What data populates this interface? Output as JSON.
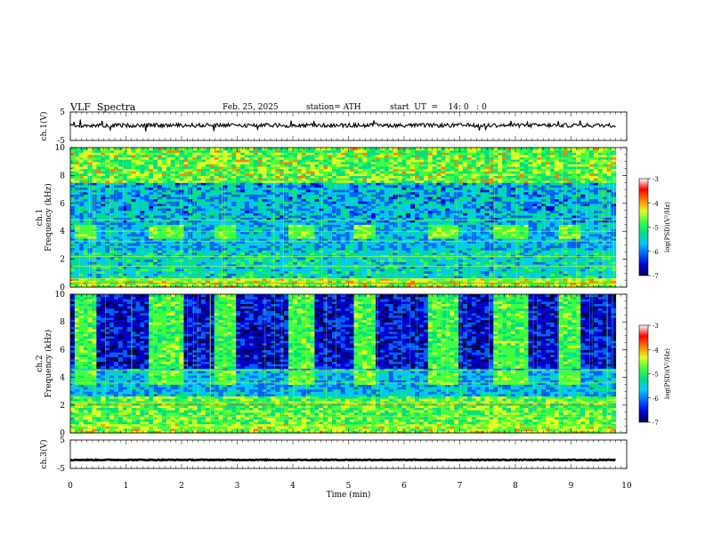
{
  "header": {
    "title": "VLF  Spectra",
    "date": "Feb. 25, 2025",
    "station": "station= ATH",
    "start": "start  UT  =    14: 0   : 0"
  },
  "chart_data": {
    "type": "heatmap",
    "title": "VLF  Spectra",
    "xlabel": "Time  (min)",
    "xlim": [
      0,
      10
    ],
    "x_ticks": [
      "0",
      "1",
      "2",
      "3",
      "4",
      "5",
      "6",
      "7",
      "8",
      "9",
      "10"
    ],
    "data_end_min": 9.8,
    "panels": [
      {
        "kind": "waveform",
        "ylabel": "ch.1(V)",
        "ylim": [
          -5,
          5
        ],
        "y_ticks": [
          "5",
          "-5"
        ],
        "mean_level_v": 0.3
      },
      {
        "kind": "spectrogram",
        "ylabel": "ch.1\nFrequency  (kHz)",
        "ylim": [
          0,
          10
        ],
        "y_ticks": [
          "0",
          "2",
          "4",
          "6",
          "8",
          "10"
        ],
        "colorbar_label": "log(PSD)(V²/Hz)",
        "colorbar_ticks": [
          "-3",
          "-4",
          "-5",
          "-6",
          "-7"
        ],
        "colorbar_range": [
          -7,
          -3
        ]
      },
      {
        "kind": "spectrogram",
        "ylabel": "ch.2\nFrequency  (kHz)",
        "ylim": [
          0,
          10
        ],
        "y_ticks": [
          "0",
          "2",
          "4",
          "6",
          "8",
          "10"
        ],
        "colorbar_label": "log(PSD)(V²/Hz)",
        "colorbar_ticks": [
          "-3",
          "-4",
          "-5",
          "-6",
          "-7"
        ],
        "colorbar_range": [
          -7,
          -3
        ]
      },
      {
        "kind": "waveform",
        "ylabel": "ch.3(V)",
        "ylim": [
          -5,
          5
        ],
        "y_ticks": [
          "5",
          "-5"
        ],
        "mean_level_v": -2.0
      }
    ],
    "activity_bursts_min": [
      [
        0.1,
        0.5
      ],
      [
        1.4,
        2.0
      ],
      [
        2.6,
        3.0
      ],
      [
        3.9,
        4.4
      ],
      [
        5.1,
        5.5
      ],
      [
        6.4,
        7.0
      ],
      [
        7.6,
        8.2
      ],
      [
        8.8,
        9.2
      ]
    ],
    "colormap": [
      "#000050",
      "#0000d0",
      "#0060ff",
      "#00c8ff",
      "#00e080",
      "#40ff40",
      "#e0ff20",
      "#ff8000",
      "#ff0000",
      "#ffffff"
    ]
  }
}
